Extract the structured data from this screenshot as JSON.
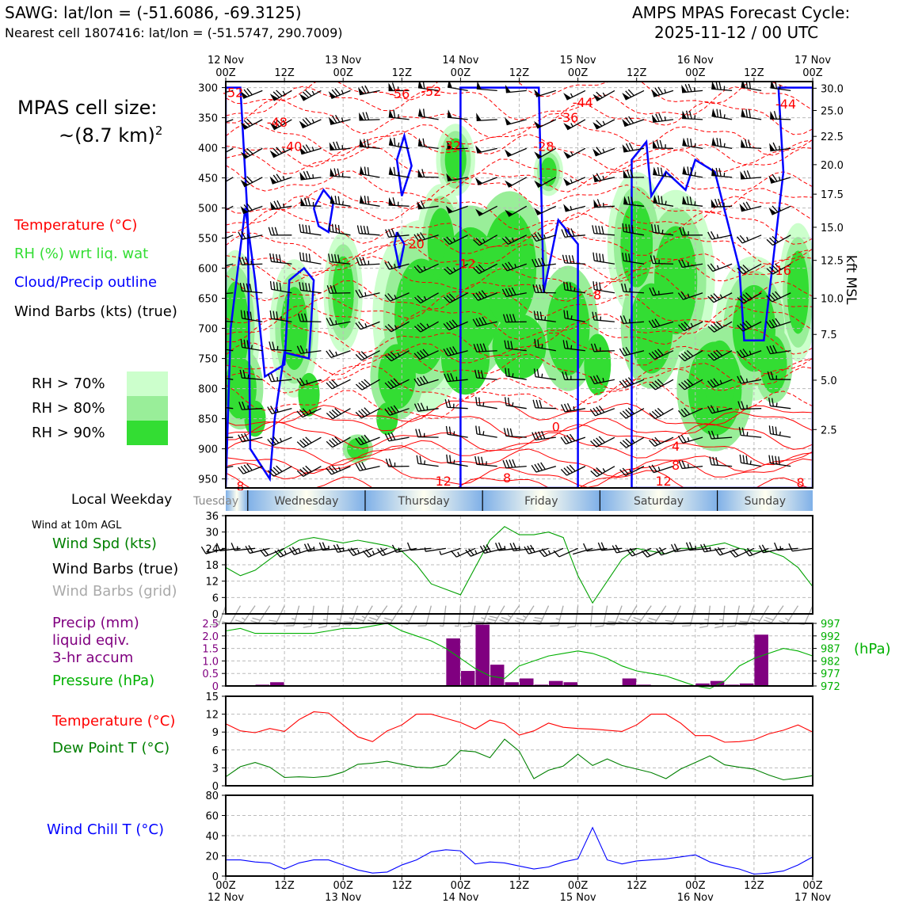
{
  "header": {
    "left_line1": "SAWG: lat/lon = (-51.6086, -69.3125)",
    "left_line2": "Nearest cell 1807416: lat/lon = (-51.5747, 290.7009)",
    "right_line1": "AMPS MPAS Forecast Cycle:",
    "right_line2": "2025-11-12 / 00 UTC"
  },
  "side": {
    "cell_size_title": "MPAS cell size:",
    "cell_size_value": "~(8.7 km)",
    "cell_size_sup": "2",
    "legend_temp": "Temperature (°C)",
    "legend_rh": "RH (%) wrt liq. wat",
    "legend_cloud": "Cloud/Precip outline",
    "legend_barbs": "Wind Barbs (kts) (true)",
    "rh70": "RH > 70%",
    "rh80": "RH > 80%",
    "rh90": "RH > 90%",
    "weekday_label": "Local Weekday",
    "wind_note": "Wind at 10m AGL",
    "wind_spd": "Wind Spd (kts)",
    "wind_barbs_true": "Wind Barbs (true)",
    "wind_barbs_grid": "Wind Barbs (grid)",
    "precip1": "Precip (mm)",
    "precip2": "liquid eqiv.",
    "precip3": "3-hr accum",
    "pressure": "Pressure (hPa)",
    "temp2": "Temperature (°C)",
    "dew": "Dew Point T (°C)",
    "chill": "Wind Chill T (°C)",
    "hpa_unit": "(hPa)",
    "kft_unit": "kft MSL"
  },
  "colors": {
    "temp": "#ff0000",
    "rh": "#33dd33",
    "cloud": "#0000ff",
    "precip": "#800080",
    "pressure": "#00b000",
    "dew": "#008000",
    "chill": "#0000ff",
    "rh70": "#ccffcc",
    "rh80": "#99ee99",
    "rh90": "#33dd33"
  },
  "time_axis": {
    "top_ticks": [
      {
        "l1": "12 Nov",
        "l2": "00Z"
      },
      {
        "l1": "",
        "l2": "12Z"
      },
      {
        "l1": "13 Nov",
        "l2": "00Z"
      },
      {
        "l1": "",
        "l2": "12Z"
      },
      {
        "l1": "14 Nov",
        "l2": "00Z"
      },
      {
        "l1": "",
        "l2": "12Z"
      },
      {
        "l1": "15 Nov",
        "l2": "00Z"
      },
      {
        "l1": "",
        "l2": "12Z"
      },
      {
        "l1": "16 Nov",
        "l2": "00Z"
      },
      {
        "l1": "",
        "l2": "12Z"
      },
      {
        "l1": "17 Nov",
        "l2": "00Z"
      }
    ],
    "bottom_ticks": [
      {
        "l1": "00Z",
        "l2": "12 Nov"
      },
      {
        "l1": "12Z",
        "l2": ""
      },
      {
        "l1": "00Z",
        "l2": "13 Nov"
      },
      {
        "l1": "12Z",
        "l2": ""
      },
      {
        "l1": "00Z",
        "l2": "14 Nov"
      },
      {
        "l1": "12Z",
        "l2": ""
      },
      {
        "l1": "00Z",
        "l2": "15 Nov"
      },
      {
        "l1": "12Z",
        "l2": ""
      },
      {
        "l1": "00Z",
        "l2": "16 Nov"
      },
      {
        "l1": "12Z",
        "l2": ""
      },
      {
        "l1": "00Z",
        "l2": "17 Nov"
      }
    ],
    "hours": [
      0,
      12,
      24,
      36,
      48,
      60,
      72,
      84,
      96,
      108,
      120
    ]
  },
  "weekdays": [
    "Tuesday",
    "Wednesday",
    "Thursday",
    "Friday",
    "Saturday",
    "Sunday"
  ],
  "chart_data": [
    {
      "type": "heatmap",
      "name": "cross-section",
      "yticks_hpa": [
        300,
        350,
        400,
        450,
        500,
        550,
        600,
        650,
        700,
        750,
        800,
        850,
        900,
        950
      ],
      "yticks_kft": [
        "30.0",
        "25.0",
        "22.5",
        "20.0",
        "17.5",
        "15.0",
        "12.5",
        "10.0",
        "7.5",
        "5.0",
        "2.5"
      ],
      "yticks_kft_hpa": [
        301,
        338,
        381,
        428,
        477,
        532,
        587,
        650,
        710,
        786,
        868
      ],
      "ylim_hpa": [
        290,
        965
      ],
      "xlim_hours": [
        0,
        120
      ],
      "contour_labels": [
        {
          "t": "-52",
          "x": 1.5,
          "p": 308
        },
        {
          "t": "-48",
          "x": 10.5,
          "p": 357
        },
        {
          "t": "-40",
          "x": 13.5,
          "p": 397
        },
        {
          "t": "-56",
          "x": 35.5,
          "p": 310
        },
        {
          "t": "-52",
          "x": 42,
          "p": 306
        },
        {
          "t": "-32",
          "x": 46,
          "p": 396
        },
        {
          "t": "-36",
          "x": 70,
          "p": 349
        },
        {
          "t": "-28",
          "x": 65,
          "p": 397
        },
        {
          "t": "-44",
          "x": 73,
          "p": 324
        },
        {
          "t": "-44",
          "x": 114.5,
          "p": 327
        },
        {
          "t": "-20",
          "x": 38.5,
          "p": 559
        },
        {
          "t": "-12",
          "x": 49,
          "p": 592
        },
        {
          "t": "-16",
          "x": 113.5,
          "p": 603
        },
        {
          "t": "-8",
          "x": 75.5,
          "p": 644
        },
        {
          "t": "0",
          "x": 67.5,
          "p": 863
        },
        {
          "t": "4",
          "x": 92,
          "p": 895
        },
        {
          "t": "8",
          "x": 92,
          "p": 927
        },
        {
          "t": "8",
          "x": 57.5,
          "p": 948
        },
        {
          "t": "12",
          "x": 44.5,
          "p": 953
        },
        {
          "t": "12",
          "x": 89.5,
          "p": 953
        },
        {
          "t": "8",
          "x": 3,
          "p": 962
        },
        {
          "t": "8",
          "x": 117.5,
          "p": 956
        }
      ]
    },
    {
      "type": "line",
      "name": "wind speed",
      "x": [
        0,
        3,
        6,
        9,
        12,
        15,
        18,
        21,
        24,
        27,
        30,
        33,
        36,
        39,
        42,
        45,
        48,
        51,
        54,
        57,
        60,
        63,
        66,
        69,
        72,
        75,
        78,
        81,
        84,
        87,
        90,
        93,
        96,
        99,
        102,
        105,
        108,
        111,
        114,
        117,
        120
      ],
      "values": [
        17,
        14,
        16,
        20,
        24,
        27,
        28,
        27,
        26,
        27,
        26,
        25,
        23,
        18,
        11,
        9,
        7,
        17,
        27,
        32,
        29,
        29,
        30,
        28,
        14,
        4,
        12,
        20,
        24,
        23,
        22,
        24,
        24,
        25,
        26,
        24,
        23,
        23,
        21,
        17,
        10
      ],
      "ylim": [
        0,
        36
      ],
      "yticks": [
        0,
        6,
        12,
        18,
        24,
        30,
        36
      ]
    },
    {
      "type": "bar",
      "name": "precip",
      "x": [
        0,
        3,
        6,
        9,
        12,
        15,
        18,
        21,
        24,
        27,
        30,
        33,
        36,
        39,
        42,
        45,
        48,
        51,
        54,
        57,
        60,
        63,
        66,
        69,
        72,
        75,
        78,
        81,
        84,
        87,
        90,
        93,
        96,
        99,
        102,
        105,
        108,
        111,
        114,
        117
      ],
      "values": [
        0,
        0,
        0.05,
        0.15,
        0,
        0,
        0,
        0,
        0,
        0,
        0,
        0,
        0,
        0,
        0,
        1.9,
        0.6,
        2.45,
        0.85,
        0.15,
        0.3,
        0.05,
        0.2,
        0.15,
        0,
        0,
        0,
        0.3,
        0.05,
        0,
        0,
        0,
        0.1,
        0.2,
        0.05,
        0.1,
        2.05,
        0,
        0,
        0
      ],
      "ylim": [
        0,
        2.5
      ],
      "yticks": [
        "0",
        "0.5",
        "1.0",
        "1.5",
        "2.0",
        "2.5"
      ]
    },
    {
      "type": "line",
      "name": "pressure",
      "x": [
        0,
        3,
        6,
        9,
        12,
        15,
        18,
        21,
        24,
        27,
        30,
        33,
        36,
        39,
        42,
        45,
        48,
        51,
        54,
        57,
        60,
        63,
        66,
        69,
        72,
        75,
        78,
        81,
        84,
        87,
        90,
        93,
        96,
        99,
        102,
        105,
        108,
        111,
        114,
        117,
        120
      ],
      "values": [
        994,
        995,
        993,
        993,
        993,
        993,
        993,
        994,
        995,
        995,
        996,
        997,
        994,
        992,
        990,
        987,
        983,
        979,
        976,
        975,
        980,
        982,
        984,
        985,
        986,
        985,
        983,
        980,
        978,
        977,
        976,
        974,
        972,
        971,
        974,
        980,
        983,
        985,
        987,
        986,
        984
      ],
      "ylim": [
        972,
        997
      ],
      "yticks": [
        "972",
        "977",
        "982",
        "987",
        "992",
        "997"
      ]
    },
    {
      "type": "line",
      "name": "temperature",
      "x": [
        0,
        3,
        6,
        9,
        12,
        15,
        18,
        21,
        24,
        27,
        30,
        33,
        36,
        39,
        42,
        45,
        48,
        51,
        54,
        57,
        60,
        63,
        66,
        69,
        72,
        75,
        78,
        81,
        84,
        87,
        90,
        93,
        96,
        99,
        102,
        105,
        108,
        111,
        114,
        117,
        120
      ],
      "values": [
        10.4,
        9.2,
        8.9,
        9.6,
        9.1,
        11.1,
        12.4,
        12.2,
        10.2,
        8.2,
        7.4,
        9.2,
        10.2,
        12.0,
        12.0,
        11.3,
        10.6,
        9.5,
        11.0,
        10.4,
        8.5,
        9.2,
        10.5,
        9.8,
        9.6,
        9.5,
        9.3,
        9.1,
        10.2,
        12.0,
        12.0,
        10.5,
        8.4,
        8.4,
        7.3,
        7.4,
        7.7,
        8.7,
        9.3,
        10.2,
        9.0
      ],
      "ylim": [
        0,
        15
      ],
      "yticks": [
        0,
        3,
        6,
        9,
        12,
        15
      ]
    },
    {
      "type": "line",
      "name": "dew point",
      "x": [
        0,
        3,
        6,
        9,
        12,
        15,
        18,
        21,
        24,
        27,
        30,
        33,
        36,
        39,
        42,
        45,
        48,
        51,
        54,
        57,
        60,
        63,
        66,
        69,
        72,
        75,
        78,
        81,
        84,
        87,
        90,
        93,
        96,
        99,
        102,
        105,
        108,
        111,
        114,
        117,
        120
      ],
      "values": [
        1.5,
        3.2,
        3.9,
        3.1,
        1.4,
        1.5,
        1.4,
        1.6,
        2.3,
        3.6,
        3.8,
        4.1,
        3.6,
        3.1,
        3.0,
        3.5,
        5.9,
        5.7,
        4.7,
        7.8,
        5.8,
        1.2,
        2.6,
        3.3,
        5.3,
        3.4,
        4.5,
        3.4,
        2.8,
        2.2,
        1.2,
        2.8,
        3.9,
        5.0,
        3.5,
        3.1,
        2.8,
        1.8,
        1.0,
        1.3,
        1.7
      ],
      "ylim": [
        0,
        15
      ],
      "yticks": [
        0,
        3,
        6,
        9,
        12,
        15
      ]
    },
    {
      "type": "line",
      "name": "wind chill",
      "x": [
        0,
        3,
        6,
        9,
        12,
        15,
        18,
        21,
        24,
        27,
        30,
        33,
        36,
        39,
        42,
        45,
        48,
        51,
        54,
        57,
        60,
        63,
        66,
        69,
        72,
        75,
        78,
        81,
        84,
        87,
        90,
        93,
        96,
        99,
        102,
        105,
        108,
        111,
        114,
        117,
        120
      ],
      "values": [
        16,
        16,
        14,
        13,
        7,
        13,
        16,
        16,
        11,
        6,
        3,
        4,
        11,
        16,
        24,
        26,
        25,
        12,
        14,
        13,
        10,
        7,
        9,
        14,
        17,
        48,
        16,
        12,
        15,
        16,
        17,
        19,
        21,
        14,
        10,
        7,
        2,
        3,
        5,
        11,
        19
      ],
      "ylim": [
        0,
        80
      ],
      "yticks": [
        0,
        20,
        40,
        60,
        80
      ]
    }
  ]
}
